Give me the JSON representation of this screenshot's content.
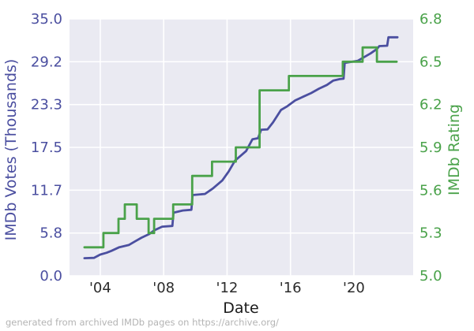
{
  "footer": {
    "text": "generated from archived IMDb pages on https://archive.org/"
  },
  "chart_data": {
    "type": "line",
    "title": "",
    "grid": true,
    "legend": "none",
    "plot_bg": "#eaeaf2",
    "grid_color": "#ffffff",
    "figure_bg": "#ffffff",
    "x_axis": {
      "label": "Date",
      "ticks": [
        "'04",
        "'08",
        "'12",
        "'16",
        "'20"
      ],
      "tick_years": [
        2004,
        2008,
        2012,
        2016,
        2020
      ],
      "range_years": [
        2002.06,
        2023.74
      ],
      "tick_color": "#2b2b2b",
      "label_color": "#1a1a1a"
    },
    "left_axis": {
      "label": "IMDb Votes (Thousands)",
      "color": "#4b4fa0",
      "ticks": [
        "35.0",
        "29.2",
        "23.3",
        "17.5",
        "11.7",
        "5.8",
        "0.0"
      ],
      "range": [
        0,
        35
      ]
    },
    "right_axis": {
      "label": "IMDb Rating",
      "color": "#4aa24a",
      "ticks": [
        "6.8",
        "6.5",
        "6.2",
        "5.9",
        "5.6",
        "5.3",
        "5.0"
      ],
      "range": [
        5.0,
        6.8
      ]
    },
    "series": [
      {
        "name": "IMDb Votes (Thousands)",
        "axis": "left",
        "color": "#4b4fa0",
        "style": "linear",
        "stroke_width": 2.8,
        "points": [
          [
            2003.0,
            2.4
          ],
          [
            2003.6,
            2.45
          ],
          [
            2004.0,
            2.9
          ],
          [
            2004.4,
            3.15
          ],
          [
            2004.7,
            3.4
          ],
          [
            2005.2,
            3.9
          ],
          [
            2005.8,
            4.2
          ],
          [
            2006.2,
            4.7
          ],
          [
            2006.6,
            5.2
          ],
          [
            2007.1,
            5.7
          ],
          [
            2007.4,
            6.2
          ],
          [
            2007.9,
            6.7
          ],
          [
            2008.55,
            6.8
          ],
          [
            2008.62,
            8.6
          ],
          [
            2009.2,
            8.9
          ],
          [
            2009.75,
            9.0
          ],
          [
            2009.82,
            11.0
          ],
          [
            2010.6,
            11.15
          ],
          [
            2011.1,
            11.9
          ],
          [
            2011.7,
            13.0
          ],
          [
            2012.1,
            14.2
          ],
          [
            2012.5,
            15.7
          ],
          [
            2013.2,
            17.0
          ],
          [
            2013.6,
            18.6
          ],
          [
            2013.95,
            18.75
          ],
          [
            2014.15,
            19.9
          ],
          [
            2014.55,
            19.95
          ],
          [
            2014.9,
            20.9
          ],
          [
            2015.4,
            22.6
          ],
          [
            2015.8,
            23.1
          ],
          [
            2016.3,
            23.9
          ],
          [
            2016.8,
            24.4
          ],
          [
            2017.3,
            24.9
          ],
          [
            2017.8,
            25.5
          ],
          [
            2018.3,
            26.0
          ],
          [
            2018.7,
            26.6
          ],
          [
            2019.1,
            26.8
          ],
          [
            2019.35,
            26.85
          ],
          [
            2019.42,
            29.0
          ],
          [
            2020.25,
            29.3
          ],
          [
            2020.65,
            29.8
          ],
          [
            2021.05,
            30.3
          ],
          [
            2021.45,
            30.9
          ],
          [
            2021.6,
            31.3
          ],
          [
            2022.1,
            31.35
          ],
          [
            2022.18,
            32.5
          ],
          [
            2022.75,
            32.5
          ]
        ]
      },
      {
        "name": "IMDb Rating",
        "axis": "right",
        "color": "#4aa24a",
        "style": "step-after",
        "stroke_width": 2.8,
        "end_year": 2022.7,
        "points": [
          [
            2003.0,
            5.2
          ],
          [
            2004.2,
            5.3
          ],
          [
            2005.15,
            5.4
          ],
          [
            2005.55,
            5.5
          ],
          [
            2006.3,
            5.4
          ],
          [
            2007.05,
            5.3
          ],
          [
            2007.4,
            5.4
          ],
          [
            2008.6,
            5.5
          ],
          [
            2009.8,
            5.7
          ],
          [
            2011.05,
            5.8
          ],
          [
            2012.55,
            5.9
          ],
          [
            2014.05,
            6.3
          ],
          [
            2015.9,
            6.4
          ],
          [
            2019.3,
            6.5
          ],
          [
            2020.55,
            6.6
          ],
          [
            2021.45,
            6.5
          ]
        ]
      }
    ]
  }
}
